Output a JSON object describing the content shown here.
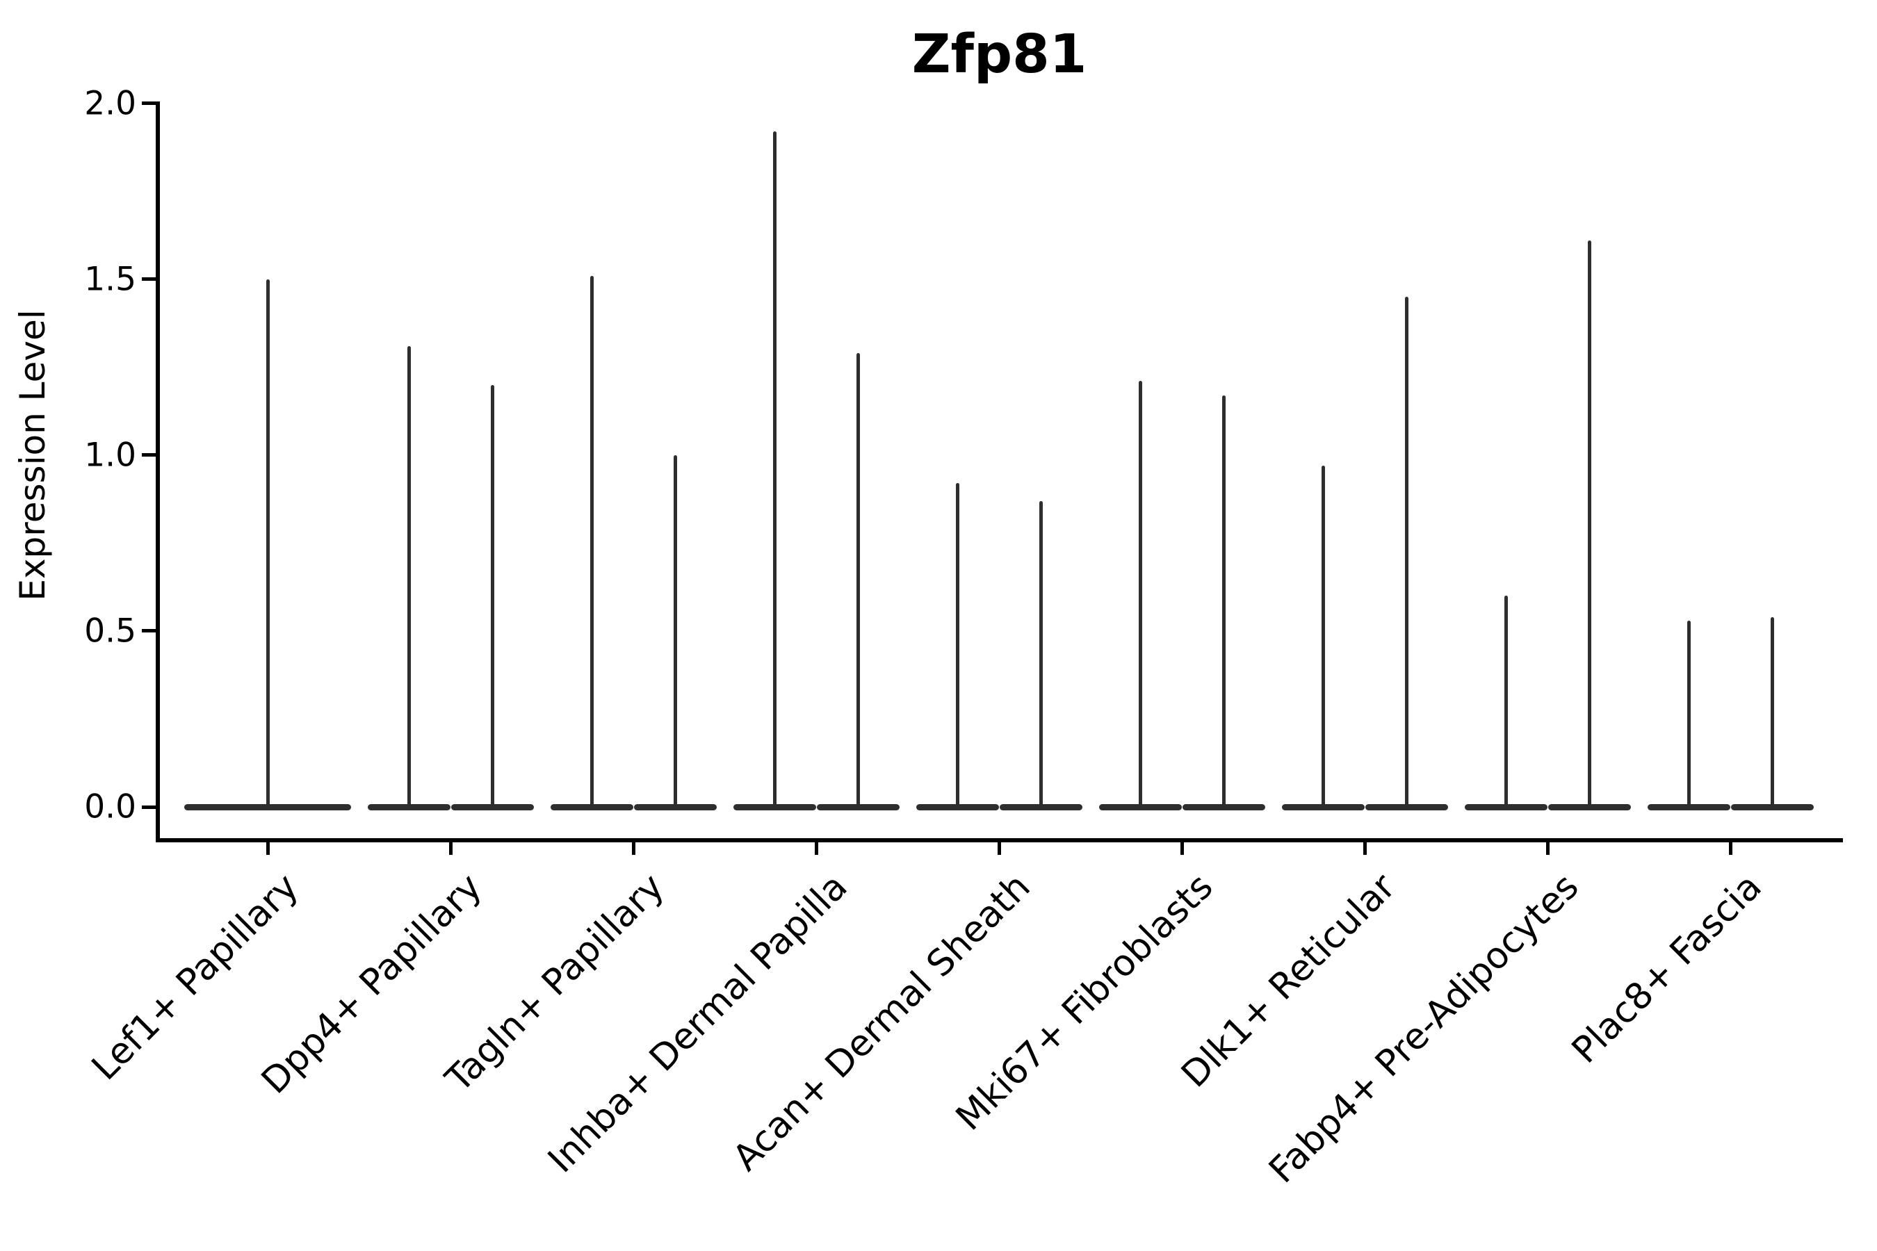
{
  "title": "Zfp81",
  "chart_data": {
    "type": "violin",
    "title": "Zfp81",
    "xlabel": "",
    "ylabel": "Expression Level",
    "ylim": [
      0.0,
      2.0
    ],
    "grid": false,
    "legend": "none",
    "yticks": [
      {
        "label": "0.0",
        "value": 0.0
      },
      {
        "label": "0.5",
        "value": 0.5
      },
      {
        "label": "1.0",
        "value": 1.0
      },
      {
        "label": "1.5",
        "value": 1.5
      },
      {
        "label": "2.0",
        "value": 2.0
      }
    ],
    "categories": [
      "Lef1+ Papillary",
      "Dpp4+ Papillary",
      "Tagln+ Papillary",
      "Inhba+ Dermal Papilla",
      "Acan+ Dermal Sheath",
      "Mki67+ Fibroblasts",
      "Dlk1+ Reticular",
      "Fabp4+ Pre-Adipocytes",
      "Plac8+ Fascia"
    ],
    "series": [
      {
        "category": "Lef1+ Papillary",
        "violins": [
          {
            "position": "center",
            "width": "full",
            "max_expression": 1.5
          }
        ]
      },
      {
        "category": "Dpp4+ Papillary",
        "violins": [
          {
            "position": "left",
            "max_expression": 1.31
          },
          {
            "position": "right",
            "max_expression": 1.2
          }
        ]
      },
      {
        "category": "Tagln+ Papillary",
        "violins": [
          {
            "position": "left",
            "max_expression": 1.51
          },
          {
            "position": "right",
            "max_expression": 1.0
          }
        ]
      },
      {
        "category": "Inhba+ Dermal Papilla",
        "violins": [
          {
            "position": "left",
            "max_expression": 1.92
          },
          {
            "position": "right",
            "max_expression": 1.29
          }
        ]
      },
      {
        "category": "Acan+ Dermal Sheath",
        "violins": [
          {
            "position": "left",
            "max_expression": 0.92
          },
          {
            "position": "right",
            "max_expression": 0.87
          }
        ]
      },
      {
        "category": "Mki67+ Fibroblasts",
        "violins": [
          {
            "position": "left",
            "max_expression": 1.21
          },
          {
            "position": "right",
            "max_expression": 1.17
          }
        ]
      },
      {
        "category": "Dlk1+ Reticular",
        "violins": [
          {
            "position": "left",
            "max_expression": 0.97
          },
          {
            "position": "right",
            "max_expression": 1.45
          }
        ]
      },
      {
        "category": "Fabp4+ Pre-Adipocytes",
        "violins": [
          {
            "position": "left",
            "max_expression": 0.6
          },
          {
            "position": "right",
            "max_expression": 1.61
          }
        ]
      },
      {
        "category": "Plac8+ Fascia",
        "violins": [
          {
            "position": "left",
            "max_expression": 0.53
          },
          {
            "position": "right",
            "max_expression": 0.54
          }
        ]
      }
    ],
    "colors": {
      "violin": "#2e2e2e",
      "axis": "#000000",
      "text": "#000000",
      "background": "#ffffff"
    },
    "violin_description": "Bottom-heavy violins: wide flat lens at expression 0 with a thin vertical density tail reaching max_expression"
  }
}
